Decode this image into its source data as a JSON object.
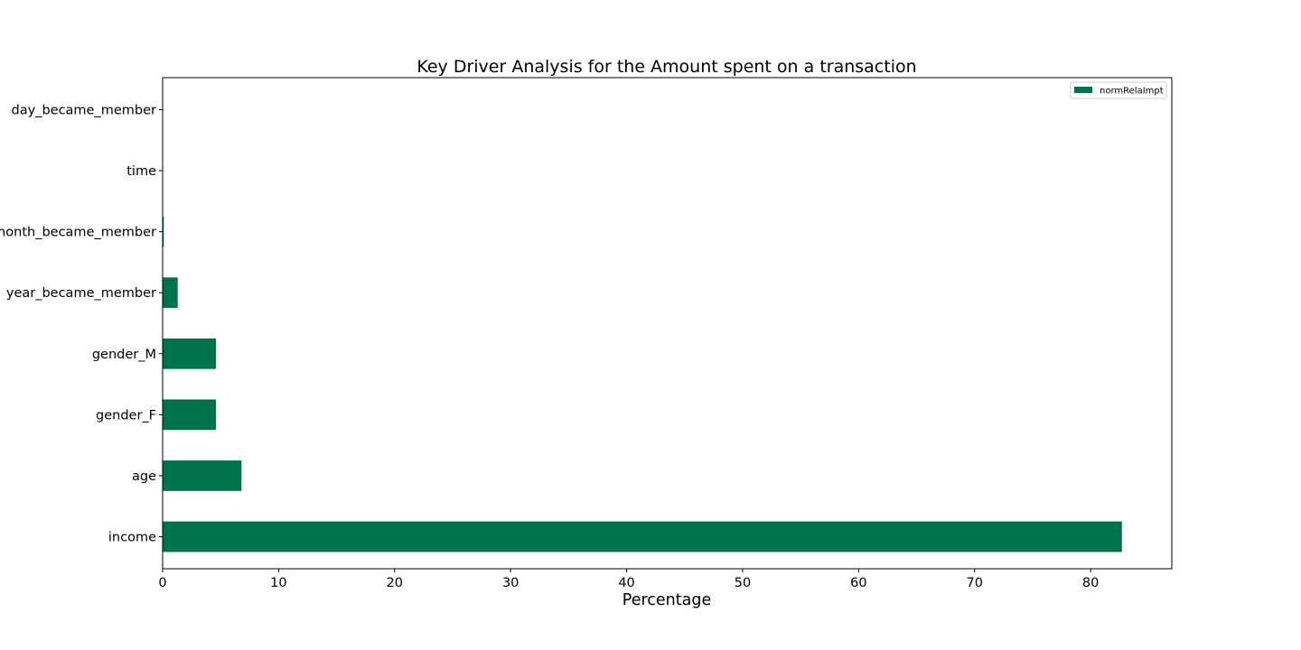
{
  "chart_data": {
    "type": "bar",
    "orientation": "horizontal",
    "title": "Key Driver Analysis for the Amount spent on a transaction",
    "xlabel": "Percentage",
    "ylabel": "",
    "categories": [
      "income",
      "age",
      "gender_F",
      "gender_M",
      "year_became_member",
      "month_became_member",
      "time",
      "day_became_member"
    ],
    "series": [
      {
        "name": "normRelaImpt",
        "values": [
          82.7,
          6.8,
          4.6,
          4.6,
          1.3,
          0.1,
          0.0,
          0.0
        ],
        "color": "#00734a"
      }
    ],
    "xlim": [
      0,
      87
    ],
    "xticks": [
      0,
      10,
      20,
      30,
      40,
      50,
      60,
      70,
      80
    ],
    "grid": false,
    "legend_position": "top-right"
  }
}
